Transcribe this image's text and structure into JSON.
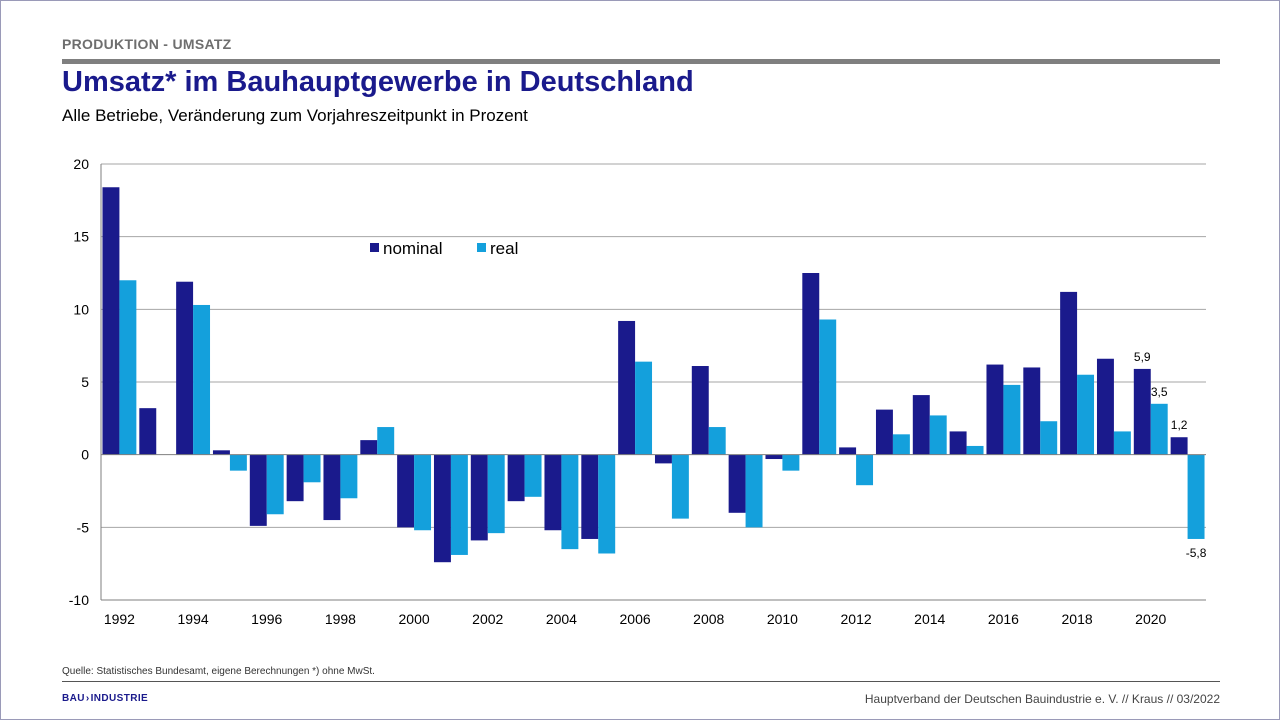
{
  "header": {
    "section": "PRODUKTION - UMSATZ",
    "title": "Umsatz* im Bauhauptgewerbe in Deutschland",
    "subtitle": "Alle Betriebe, Veränderung zum Vorjahreszeitpunkt in Prozent"
  },
  "footer": {
    "source": "Quelle: Statistisches Bundesamt, eigene Berechnungen   *) ohne MwSt.",
    "logo_left": "BAU",
    "logo_right": "INDUSTRIE",
    "right_text": "Hauptverband  der Deutschen Bauindustrie e. V.  //  Kraus  // 03/2022"
  },
  "colors": {
    "nominal": "#1a1a8c",
    "real": "#14a0dc",
    "grid": "#a6a6a6"
  },
  "chart_data": {
    "type": "bar",
    "title": "",
    "xlabel": "",
    "ylabel": "",
    "ylim": [
      -10,
      20
    ],
    "yticks": [
      -10,
      -5,
      0,
      5,
      10,
      15,
      20
    ],
    "grid": true,
    "legend_position": "top-left",
    "categories": [
      "1992",
      "1993",
      "1994",
      "1995",
      "1996",
      "1997",
      "1998",
      "1999",
      "2000",
      "2001",
      "2002",
      "2003",
      "2004",
      "2005",
      "2006",
      "2007",
      "2008",
      "2009",
      "2010",
      "2011",
      "2012",
      "2013",
      "2014",
      "2015",
      "2016",
      "2017",
      "2018",
      "2019",
      "2020",
      "2021"
    ],
    "tick_labels": [
      "1992",
      "1994",
      "1996",
      "1998",
      "2000",
      "2002",
      "2004",
      "2006",
      "2008",
      "2010",
      "2012",
      "2014",
      "2016",
      "2018",
      "2020"
    ],
    "series": [
      {
        "name": "nominal",
        "values": [
          18.4,
          3.2,
          11.9,
          0.3,
          -4.9,
          -3.2,
          -4.5,
          1.0,
          -5.0,
          -7.4,
          -5.9,
          -3.2,
          -5.2,
          -5.8,
          9.2,
          -0.6,
          6.1,
          -4.0,
          -0.3,
          12.5,
          0.5,
          3.1,
          4.1,
          1.6,
          6.2,
          6.0,
          11.2,
          6.6,
          5.9,
          1.2
        ]
      },
      {
        "name": "real",
        "values": [
          12.0,
          0.0,
          10.3,
          -1.1,
          -4.1,
          -1.9,
          -3.0,
          1.9,
          -5.2,
          -6.9,
          -5.4,
          -2.9,
          -6.5,
          -6.8,
          6.4,
          -4.4,
          1.9,
          -5.0,
          -1.1,
          9.3,
          -2.1,
          1.4,
          2.7,
          0.6,
          4.8,
          2.3,
          5.5,
          1.6,
          3.5,
          -5.8
        ]
      }
    ],
    "annotations": [
      {
        "category": "2020",
        "series": "nominal",
        "text": "5,9"
      },
      {
        "category": "2020",
        "series": "real",
        "text": "3,5"
      },
      {
        "category": "2021",
        "series": "nominal",
        "text": "1,2"
      },
      {
        "category": "2021",
        "series": "real",
        "text": "-5,8"
      }
    ]
  }
}
